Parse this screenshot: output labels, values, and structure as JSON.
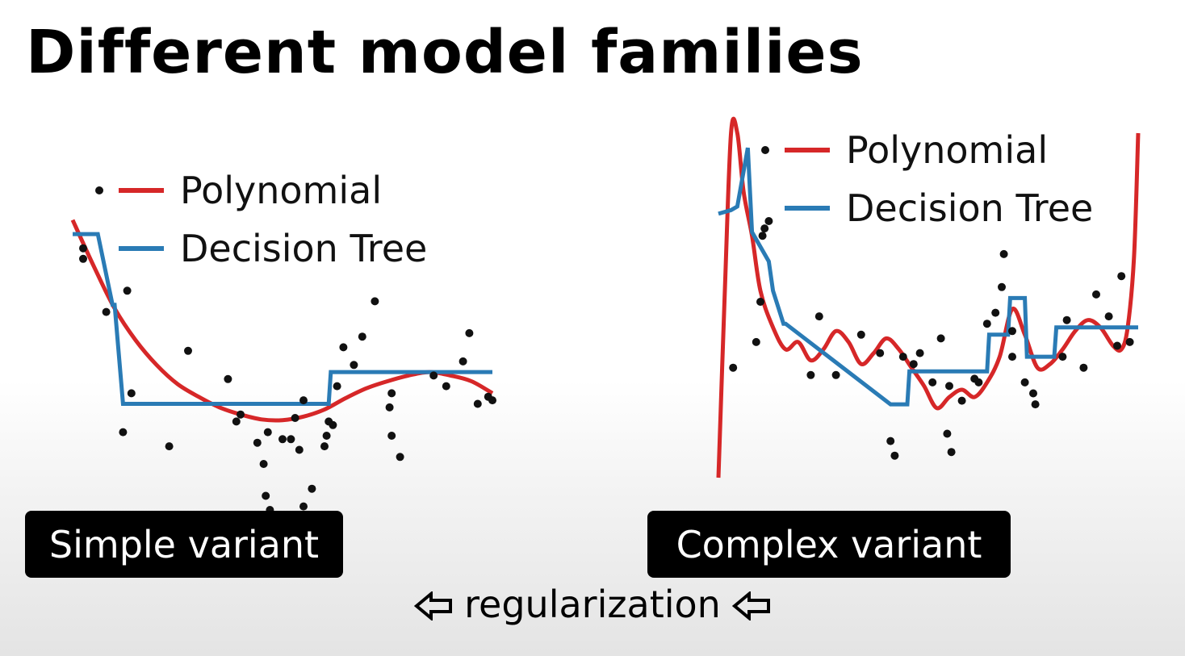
{
  "slide": {
    "title": "Different model families",
    "left_tag": "Simple variant",
    "right_tag": "Complex variant",
    "footer": "regularization",
    "footer_arrow_icon": "left-arrow-icon"
  },
  "colors": {
    "polynomial": "#d62728",
    "decision_tree": "#2a7bb5",
    "points": "#111111"
  },
  "chart_data": [
    {
      "type": "scatter",
      "title": "",
      "legend": [
        {
          "label": "Polynomial",
          "color": "#d62728"
        },
        {
          "label": "Decision Tree",
          "color": "#2a7bb5"
        }
      ],
      "legend_position": "top",
      "xlim": [
        0,
        10
      ],
      "ylim": [
        -1.5,
        3.2
      ],
      "points": [
        [
          0.25,
          2.2
        ],
        [
          0.25,
          2.05
        ],
        [
          0.8,
          1.3
        ],
        [
          1.3,
          1.6
        ],
        [
          1.4,
          0.15
        ],
        [
          1.2,
          -0.4
        ],
        [
          2.3,
          -0.6
        ],
        [
          2.75,
          0.75
        ],
        [
          3.7,
          0.35
        ],
        [
          3.9,
          -0.25
        ],
        [
          4.0,
          -0.15
        ],
        [
          4.4,
          -0.55
        ],
        [
          4.55,
          -0.85
        ],
        [
          4.65,
          -0.4
        ],
        [
          4.6,
          -1.3
        ],
        [
          4.7,
          -1.5
        ],
        [
          5.5,
          0.05
        ],
        [
          5.3,
          -0.2
        ],
        [
          5.7,
          -1.2
        ],
        [
          5.5,
          -1.45
        ],
        [
          5.2,
          -0.5
        ],
        [
          5.4,
          -0.65
        ],
        [
          5.0,
          -0.5
        ],
        [
          6.1,
          -0.25
        ],
        [
          6.0,
          -0.6
        ],
        [
          6.05,
          -0.45
        ],
        [
          6.2,
          -0.3
        ],
        [
          6.3,
          0.25
        ],
        [
          6.7,
          0.55
        ],
        [
          6.45,
          0.8
        ],
        [
          6.9,
          0.95
        ],
        [
          7.2,
          1.45
        ],
        [
          7.6,
          -0.45
        ],
        [
          7.55,
          -0.05
        ],
        [
          7.6,
          0.15
        ],
        [
          7.8,
          -0.75
        ],
        [
          8.6,
          0.4
        ],
        [
          8.9,
          0.25
        ],
        [
          9.3,
          0.6
        ],
        [
          9.45,
          1.0
        ],
        [
          9.65,
          0.0
        ],
        [
          9.9,
          0.1
        ],
        [
          10.0,
          0.05
        ]
      ],
      "series": [
        {
          "name": "Polynomial",
          "x": [
            0.0,
            0.5,
            1.0,
            1.5,
            2.0,
            2.5,
            3.0,
            3.5,
            4.0,
            4.5,
            5.0,
            5.5,
            6.0,
            6.5,
            7.0,
            7.5,
            8.0,
            8.5,
            9.0,
            9.5,
            10.0
          ],
          "y": [
            2.6,
            1.95,
            1.35,
            0.9,
            0.55,
            0.28,
            0.1,
            -0.05,
            -0.15,
            -0.22,
            -0.23,
            -0.18,
            -0.08,
            0.08,
            0.22,
            0.32,
            0.4,
            0.45,
            0.4,
            0.32,
            0.15
          ]
        },
        {
          "name": "Decision Tree",
          "step_edges": [
            0.0,
            0.6,
            0.95,
            1.0,
            1.2,
            1.25,
            6.1,
            6.15,
            10.0
          ],
          "step_values": [
            2.4,
            2.4,
            1.4,
            1.4,
            0.0,
            0.0,
            0.0,
            0.45,
            0.45
          ]
        }
      ]
    },
    {
      "type": "scatter",
      "title": "",
      "legend": [
        {
          "label": "Polynomial",
          "color": "#d62728"
        },
        {
          "label": "Decision Tree",
          "color": "#2a7bb5"
        }
      ],
      "legend_position": "top",
      "xlim": [
        0,
        10
      ],
      "ylim": [
        -1.5,
        3.2
      ],
      "points": [
        [
          1.2,
          2.0
        ],
        [
          1.05,
          1.8
        ],
        [
          1.1,
          1.9
        ],
        [
          1.0,
          0.9
        ],
        [
          0.35,
          0.0
        ],
        [
          0.9,
          0.35
        ],
        [
          2.4,
          0.7
        ],
        [
          2.2,
          -0.1
        ],
        [
          2.8,
          -0.1
        ],
        [
          3.4,
          0.45
        ],
        [
          3.85,
          0.2
        ],
        [
          4.1,
          -1.0
        ],
        [
          4.2,
          -1.2
        ],
        [
          4.4,
          0.15
        ],
        [
          4.65,
          0.05
        ],
        [
          4.8,
          0.2
        ],
        [
          5.1,
          -0.2
        ],
        [
          5.3,
          0.4
        ],
        [
          5.5,
          -0.25
        ],
        [
          5.45,
          -0.9
        ],
        [
          5.55,
          -1.15
        ],
        [
          5.8,
          -0.45
        ],
        [
          6.1,
          -0.15
        ],
        [
          6.2,
          -0.2
        ],
        [
          6.4,
          0.6
        ],
        [
          6.6,
          0.75
        ],
        [
          6.8,
          1.55
        ],
        [
          6.75,
          1.1
        ],
        [
          7.0,
          0.15
        ],
        [
          7.3,
          -0.2
        ],
        [
          7.5,
          -0.35
        ],
        [
          7.55,
          -0.5
        ],
        [
          7.0,
          0.5
        ],
        [
          8.3,
          0.65
        ],
        [
          9.0,
          1.0
        ],
        [
          9.3,
          0.7
        ],
        [
          9.5,
          0.3
        ],
        [
          9.8,
          0.35
        ],
        [
          9.6,
          1.25
        ],
        [
          8.2,
          0.15
        ],
        [
          8.7,
          0.0
        ]
      ],
      "series": [
        {
          "name": "Polynomial",
          "x": [
            0.0,
            0.15,
            0.3,
            0.45,
            0.6,
            0.8,
            1.0,
            1.3,
            1.6,
            1.9,
            2.2,
            2.5,
            2.8,
            3.1,
            3.4,
            3.7,
            4.0,
            4.3,
            4.6,
            4.9,
            5.2,
            5.5,
            5.8,
            6.1,
            6.4,
            6.7,
            7.0,
            7.3,
            7.6,
            7.9,
            8.2,
            8.5,
            8.8,
            9.1,
            9.4,
            9.6,
            9.75,
            9.9,
            10.0
          ],
          "y": [
            -1.5,
            1.0,
            3.2,
            3.2,
            2.4,
            1.8,
            1.05,
            0.55,
            0.25,
            0.35,
            0.1,
            0.25,
            0.5,
            0.35,
            0.05,
            0.2,
            0.4,
            0.25,
            0.0,
            -0.25,
            -0.55,
            -0.4,
            -0.3,
            -0.4,
            -0.2,
            0.15,
            0.8,
            0.45,
            0.0,
            0.05,
            0.25,
            0.5,
            0.65,
            0.55,
            0.3,
            0.25,
            0.55,
            1.5,
            3.2
          ]
        },
        {
          "name": "Decision Tree",
          "step_edges": [
            0.0,
            0.3,
            0.45,
            0.7,
            0.8,
            1.2,
            1.3,
            1.55,
            1.6,
            4.1,
            4.15,
            4.5,
            4.55,
            6.4,
            6.45,
            6.9,
            6.95,
            7.3,
            7.35,
            8.0,
            8.05,
            10.0
          ],
          "step_values": [
            2.1,
            2.15,
            2.2,
            3.0,
            1.85,
            1.45,
            1.05,
            0.6,
            0.6,
            -0.5,
            -0.5,
            -0.5,
            -0.05,
            -0.05,
            0.45,
            0.45,
            0.95,
            0.95,
            0.15,
            0.15,
            0.55,
            0.55
          ]
        }
      ]
    }
  ]
}
